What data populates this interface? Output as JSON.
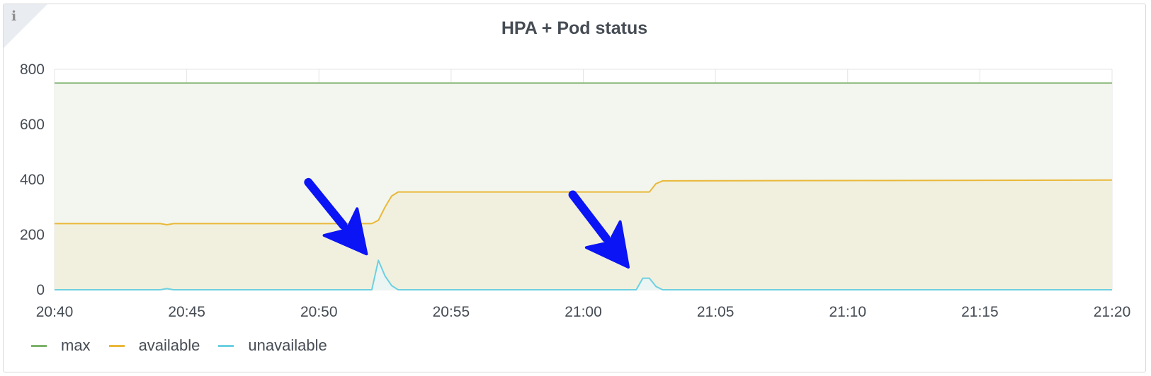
{
  "panel": {
    "title": "HPA + Pod status",
    "info_icon": "info-icon",
    "info_glyph": "i"
  },
  "chart_data": {
    "type": "area",
    "title": "HPA + Pod status",
    "xlabel": "",
    "ylabel": "",
    "x_unit": "minutes of time",
    "x_tick_labels": [
      "20:40",
      "20:45",
      "20:50",
      "20:55",
      "21:00",
      "21:05",
      "21:10",
      "21:15",
      "21:20"
    ],
    "y_tick_labels": [
      "0",
      "200",
      "400",
      "600",
      "800"
    ],
    "xlim": [
      "20:40",
      "21:20"
    ],
    "ylim": [
      0,
      800
    ],
    "grid": true,
    "legend_position": "bottom-left",
    "series": [
      {
        "name": "max",
        "color": "#7eb26d",
        "fill": "#f2f6ee",
        "points": [
          [
            "20:40",
            750
          ],
          [
            "21:20",
            750
          ]
        ]
      },
      {
        "name": "available",
        "color": "#eab839",
        "fill": "#f1f0de",
        "points": [
          [
            "20:40",
            240
          ],
          [
            "20:44",
            240
          ],
          [
            "20:44.25",
            236
          ],
          [
            "20:44.5",
            240
          ],
          [
            "20:52",
            240
          ],
          [
            "20:52.25",
            252
          ],
          [
            "20:52.5",
            300
          ],
          [
            "20:52.75",
            340
          ],
          [
            "20:53",
            355
          ],
          [
            "21:02.5",
            355
          ],
          [
            "21:02.75",
            385
          ],
          [
            "21:03",
            395
          ],
          [
            "21:20",
            398
          ]
        ]
      },
      {
        "name": "unavailable",
        "color": "#6ed0e0",
        "fill": "#eaf5f4",
        "points": [
          [
            "20:40",
            0
          ],
          [
            "20:44",
            0
          ],
          [
            "20:44.25",
            4
          ],
          [
            "20:44.5",
            0
          ],
          [
            "20:52",
            0
          ],
          [
            "20:52.25",
            107
          ],
          [
            "20:52.5",
            50
          ],
          [
            "20:52.75",
            15
          ],
          [
            "20:53",
            0
          ],
          [
            "21:02",
            0
          ],
          [
            "21:02.25",
            42
          ],
          [
            "21:02.5",
            42
          ],
          [
            "21:02.75",
            12
          ],
          [
            "21:03",
            0
          ],
          [
            "21:20",
            0
          ]
        ]
      }
    ],
    "annotations": [
      {
        "type": "arrow",
        "color": "#0a14f5",
        "from": [
          "20:49.6",
          390
        ],
        "to": [
          "20:51.8",
          130
        ]
      },
      {
        "type": "arrow",
        "color": "#0a14f5",
        "from": [
          "20:59.6",
          345
        ],
        "to": [
          "21:01.7",
          82
        ]
      }
    ]
  }
}
